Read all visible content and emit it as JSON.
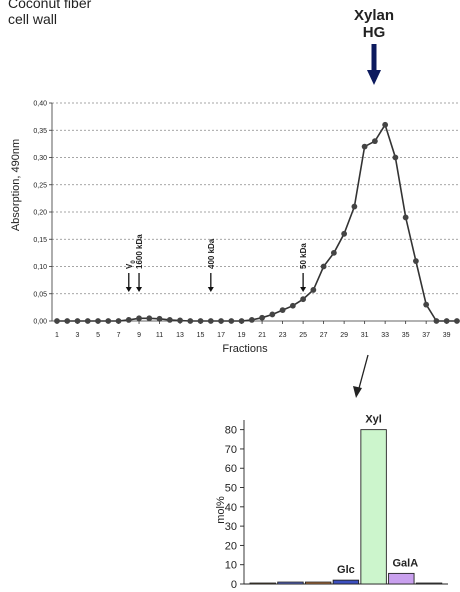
{
  "header": {
    "line1": "Coconut fiber",
    "line2": "cell wall"
  },
  "callout": {
    "line1": "Xylan",
    "line2": "HG"
  },
  "chart_data": [
    {
      "type": "line",
      "xlabel": "Fractions",
      "ylabel": "Absorption, 490nm",
      "ylim": [
        0,
        0.4
      ],
      "y_ticks": [
        "0,00",
        "0,05",
        "0,10",
        "0,15",
        "0,20",
        "0,25",
        "0,30",
        "0,35",
        "0,40"
      ],
      "x_ticks": [
        "1",
        "3",
        "5",
        "7",
        "9",
        "11",
        "13",
        "15",
        "17",
        "19",
        "21",
        "23",
        "25",
        "27",
        "29",
        "31",
        "33",
        "35",
        "37",
        "39"
      ],
      "grid": "horizontal dashed",
      "x": [
        1,
        2,
        3,
        4,
        5,
        6,
        7,
        8,
        9,
        10,
        11,
        12,
        13,
        14,
        15,
        16,
        17,
        18,
        19,
        20,
        21,
        22,
        23,
        24,
        25,
        26,
        27,
        28,
        29,
        30,
        31,
        32,
        33,
        34,
        35,
        36,
        37,
        38,
        39,
        40
      ],
      "y": [
        0.0,
        0.0,
        0.0,
        0.0,
        0.0,
        0.0,
        0.0,
        0.002,
        0.005,
        0.005,
        0.004,
        0.002,
        0.001,
        0.0,
        0.0,
        0.0,
        0.0,
        0.0,
        0.0,
        0.002,
        0.006,
        0.012,
        0.02,
        0.028,
        0.04,
        0.057,
        0.1,
        0.125,
        0.16,
        0.21,
        0.32,
        0.33,
        0.36,
        0.3,
        0.19,
        0.11,
        0.03,
        0.0,
        0.0,
        0.0
      ],
      "markers": [
        {
          "x": 8,
          "label": "V",
          "sub": "0"
        },
        {
          "x": 9,
          "label": "1600 kDa"
        },
        {
          "x": 16,
          "label": "400 kDa"
        },
        {
          "x": 25,
          "label": "50 kDa"
        }
      ]
    },
    {
      "type": "bar",
      "ylabel": "mol%",
      "ylim": [
        0,
        85
      ],
      "y_ticks": [
        "0",
        "10",
        "20",
        "30",
        "40",
        "50",
        "60",
        "70",
        "80"
      ],
      "categories": [
        "",
        "",
        "",
        "Glc",
        "Xyl",
        "GalA",
        ""
      ],
      "values": [
        0.5,
        1,
        1,
        2,
        80,
        5.5,
        0.5
      ],
      "colors": [
        "#d8a040",
        "#5c6fd0",
        "#c07a40",
        "#3c4fbf",
        "#ccf5cc",
        "#c9a0ee",
        "#999999"
      ]
    }
  ]
}
